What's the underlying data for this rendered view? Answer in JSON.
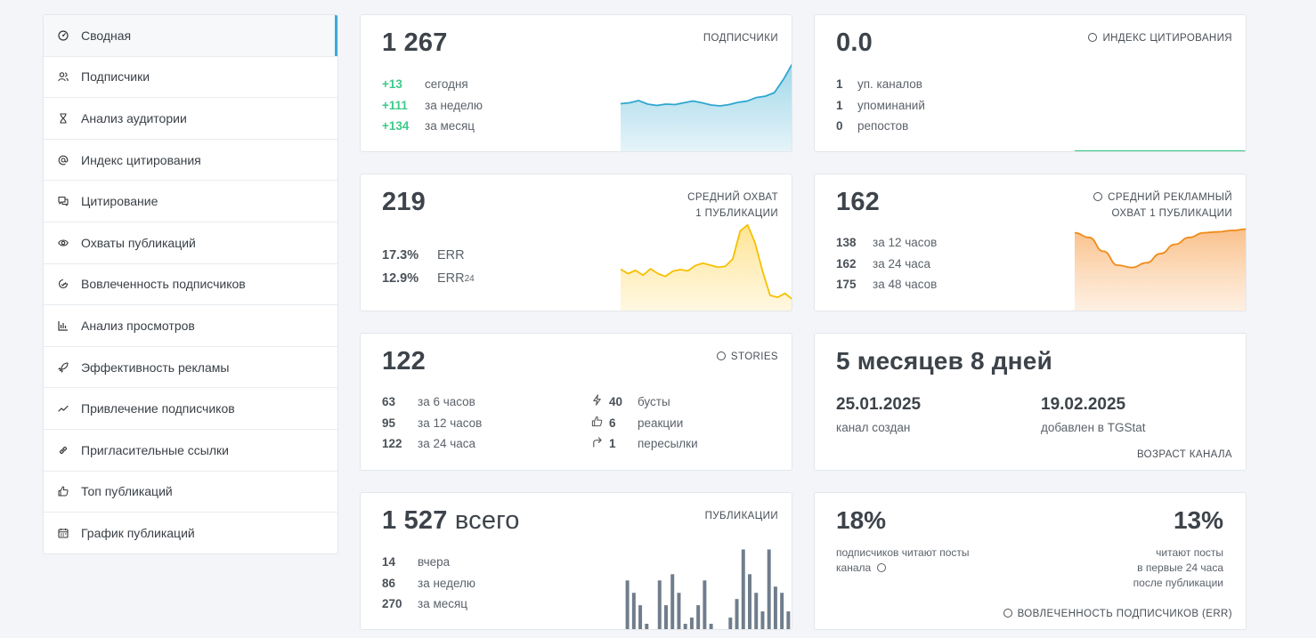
{
  "sidebar": {
    "items": [
      {
        "label": "Сводная",
        "icon": "dashboard-icon"
      },
      {
        "label": "Подписчики",
        "icon": "users-icon"
      },
      {
        "label": "Анализ аудитории",
        "icon": "hourglass-icon"
      },
      {
        "label": "Индекс цитирования",
        "icon": "at-icon"
      },
      {
        "label": "Цитирование",
        "icon": "quote-icon"
      },
      {
        "label": "Охваты публикаций",
        "icon": "eye-icon"
      },
      {
        "label": "Вовлеченность подписчиков",
        "icon": "engagement-icon"
      },
      {
        "label": "Анализ просмотров",
        "icon": "bar-chart-icon"
      },
      {
        "label": "Эффективность рекламы",
        "icon": "rocket-icon"
      },
      {
        "label": "Привлечение подписчиков",
        "icon": "trend-icon"
      },
      {
        "label": "Пригласительные ссылки",
        "icon": "link-icon"
      },
      {
        "label": "Топ публикаций",
        "icon": "thumbs-up-icon"
      },
      {
        "label": "График публикаций",
        "icon": "calendar-icon"
      }
    ]
  },
  "subscribers": {
    "value": "1 267",
    "title": "ПОДПИСЧИКИ",
    "rows": [
      {
        "num": "+13",
        "label": "сегодня"
      },
      {
        "num": "+111",
        "label": "за неделю"
      },
      {
        "num": "+134",
        "label": "за месяц"
      }
    ]
  },
  "citation": {
    "value": "0.0",
    "title": "ИНДЕКС ЦИТИРОВАНИЯ",
    "rows": [
      {
        "num": "1",
        "label": "уп. каналов"
      },
      {
        "num": "1",
        "label": "упоминаний"
      },
      {
        "num": "0",
        "label": "репостов"
      }
    ]
  },
  "reach": {
    "value": "219",
    "title1": "СРЕДНИЙ ОХВАТ",
    "title2": "1 ПУБЛИКАЦИИ",
    "rows": [
      {
        "num": "17.3%",
        "label": "ERR",
        "sub": ""
      },
      {
        "num": "12.9%",
        "label": "ERR",
        "sub": "24"
      }
    ]
  },
  "ad_reach": {
    "value": "162",
    "title1": "СРЕДНИЙ РЕКЛАМНЫЙ",
    "title2": "ОХВАТ 1 ПУБЛИКАЦИИ",
    "rows": [
      {
        "num": "138",
        "label": "за 12 часов"
      },
      {
        "num": "162",
        "label": "за 24 часа"
      },
      {
        "num": "175",
        "label": "за 48 часов"
      }
    ]
  },
  "stories": {
    "value": "122",
    "title": "STORIES",
    "rows_left": [
      {
        "num": "63",
        "label": "за 6 часов"
      },
      {
        "num": "95",
        "label": "за 12 часов"
      },
      {
        "num": "122",
        "label": "за 24 часа"
      }
    ],
    "rows_right": [
      {
        "num": "40",
        "label": "бусты",
        "icon": "bolt-icon"
      },
      {
        "num": "6",
        "label": "реакции",
        "icon": "thumbs-up-icon"
      },
      {
        "num": "1",
        "label": "пересылки",
        "icon": "share-icon"
      }
    ]
  },
  "age": {
    "value": "5 месяцев 8 дней",
    "created_date": "25.01.2025",
    "created_label": "канал создан",
    "added_date": "19.02.2025",
    "added_label": "добавлен в TGStat",
    "title": "ВОЗРАСТ КАНАЛА"
  },
  "publications": {
    "value": "1 527",
    "value_suffix": "всего",
    "title": "ПУБЛИКАЦИИ",
    "rows": [
      {
        "num": "14",
        "label": "вчера"
      },
      {
        "num": "86",
        "label": "за неделю"
      },
      {
        "num": "270",
        "label": "за месяц"
      }
    ]
  },
  "engagement": {
    "left_pct": "18%",
    "left_line1": "подписчиков читают посты",
    "left_line2": "канала",
    "right_pct": "13%",
    "right_line1": "читают посты",
    "right_line2": "в первые 24 часа",
    "right_line3": "после публикации",
    "title": "ВОВЛЕЧЕННОСТЬ ПОДПИСЧИКОВ (ERR)"
  },
  "colors": {
    "accent": "#3fa9d9",
    "green": "#3ec98a",
    "subs_line": "#2fa7cf",
    "reach_line": "#f5c000",
    "ad_line": "#f08a17",
    "bars": "#6f7d8c"
  },
  "chart_data": [
    {
      "type": "area",
      "series": [
        {
          "values": [
            110,
            112,
            117,
            109,
            106,
            109,
            108,
            112,
            116,
            112,
            107,
            105,
            108,
            113,
            116,
            124,
            127,
            135,
            165,
            201
          ]
        }
      ]
    },
    {
      "type": "area",
      "series": [
        {
          "values": [
            105,
            94,
            102,
            90,
            106,
            94,
            87,
            100,
            104,
            101,
            114,
            120,
            115,
            110,
            112,
            130,
            200,
            215,
            170,
            100,
            40,
            35,
            45,
            30
          ]
        }
      ]
    },
    {
      "type": "area",
      "series": [
        {
          "values": [
            170,
            160,
            130,
            100,
            95,
            105,
            125,
            145,
            160,
            170,
            172,
            175,
            178
          ]
        }
      ]
    },
    {
      "type": "bar",
      "values": [
        8,
        6,
        4,
        1,
        0,
        8,
        4,
        9,
        6,
        1,
        2,
        4,
        8,
        1,
        0,
        0,
        2,
        5,
        13,
        9,
        6,
        3,
        13,
        7,
        6,
        3
      ]
    },
    {
      "type": "line",
      "series": [
        {
          "values": [
            0,
            0,
            0,
            0,
            0,
            0,
            0,
            0,
            0,
            0
          ]
        }
      ]
    }
  ]
}
